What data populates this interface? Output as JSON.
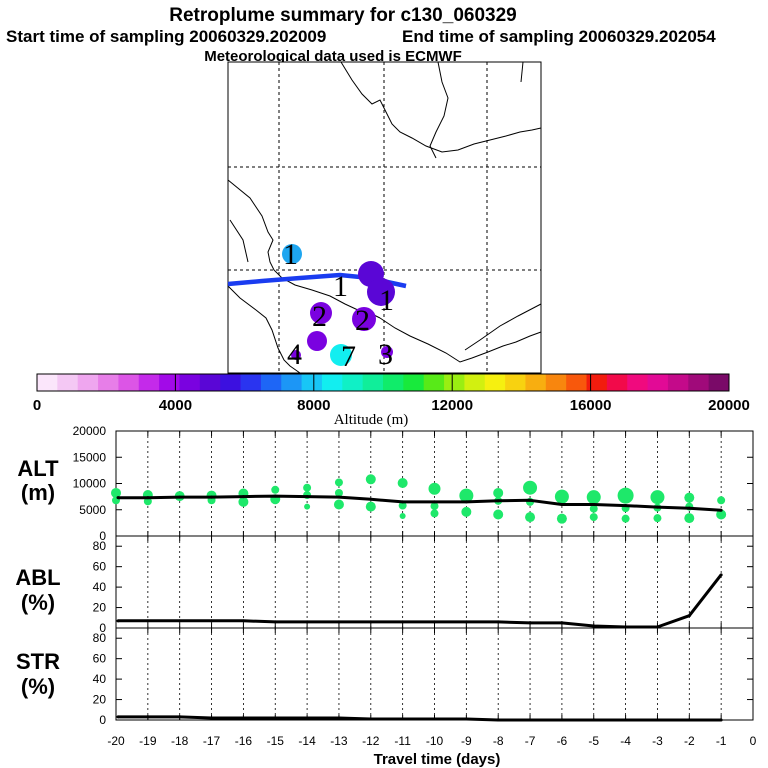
{
  "header": {
    "title": "Retroplume summary for c130_060329",
    "start": "Start time of sampling 20060329.202009",
    "end": "End time of sampling 20060329.202054",
    "met": "Meteorological data used is ECMWF"
  },
  "colors": {
    "track": "#1a3cf0",
    "alt_dot": "#1ee86a",
    "line": "#000000",
    "colorbar": [
      "#fbe6fb",
      "#f4c8f4",
      "#efa6ef",
      "#e77ee8",
      "#dc55e6",
      "#c42aea",
      "#a20ae8",
      "#7a02e0",
      "#5a06d6",
      "#3c10e0",
      "#2a34f0",
      "#1e66f6",
      "#1c96f6",
      "#18c6f6",
      "#12eef0",
      "#10f0c6",
      "#10ee9a",
      "#10ec6a",
      "#18ea3c",
      "#58ea18",
      "#9aee12",
      "#d2f010",
      "#f6f010",
      "#f8d210",
      "#f8ae10",
      "#f8860e",
      "#f8580c",
      "#f21c0e",
      "#f20a4a",
      "#f00a7e",
      "#e20a96",
      "#c40a8a",
      "#a00a7a",
      "#7a0a68"
    ]
  },
  "map": {
    "points": [
      {
        "label": "1",
        "color": "#1ea6f0"
      },
      {
        "label": "1",
        "color": "#5a06d6"
      },
      {
        "label": "1",
        "color": "#5a06d6"
      },
      {
        "label": "2",
        "color": "#7a02e0"
      },
      {
        "label": "2",
        "color": "#7a02e0"
      },
      {
        "label": "4",
        "color": "#7a02e0"
      },
      {
        "label": "7",
        "color": "#12eef0"
      },
      {
        "label": "3",
        "color": "#7a02e0"
      },
      {
        "label": "",
        "color": "#7a02e0"
      }
    ]
  },
  "colorbar": {
    "ticks": [
      "0",
      "4000",
      "8000",
      "12000",
      "16000",
      "20000"
    ],
    "label": "Altitude (m)"
  },
  "chart_data": [
    {
      "type": "line",
      "name": "ALT",
      "ylabel_lines": [
        "ALT",
        "(m)"
      ],
      "x": [
        -20,
        -19,
        -18,
        -17,
        -16,
        -15,
        -14,
        -13,
        -12,
        -11,
        -10,
        -9,
        -8,
        -7,
        -6,
        -5,
        -4,
        -3,
        -2,
        -1
      ],
      "values": [
        7300,
        7300,
        7400,
        7400,
        7500,
        7600,
        7500,
        7400,
        7000,
        6500,
        6500,
        6500,
        6700,
        6800,
        6000,
        6000,
        5800,
        5500,
        5300,
        4900
      ],
      "ylim": [
        0,
        20000
      ],
      "yticks": [
        "0",
        "5000",
        "10000",
        "15000",
        "20000"
      ],
      "scatter": [
        [
          -20,
          8200,
          5
        ],
        [
          -20,
          6800,
          4
        ],
        [
          -19,
          7800,
          5
        ],
        [
          -19,
          6600,
          4
        ],
        [
          -18,
          7600,
          5
        ],
        [
          -17,
          7700,
          5
        ],
        [
          -17,
          6800,
          4
        ],
        [
          -16,
          8100,
          5
        ],
        [
          -16,
          6500,
          5
        ],
        [
          -15,
          8800,
          4
        ],
        [
          -15,
          7000,
          5
        ],
        [
          -14,
          9200,
          4
        ],
        [
          -14,
          7800,
          4
        ],
        [
          -14,
          5600,
          3
        ],
        [
          -13,
          10200,
          4
        ],
        [
          -13,
          8200,
          4
        ],
        [
          -13,
          6000,
          5
        ],
        [
          -12,
          10800,
          5
        ],
        [
          -12,
          5600,
          5
        ],
        [
          -11,
          10100,
          5
        ],
        [
          -11,
          5800,
          4
        ],
        [
          -11,
          3800,
          3
        ],
        [
          -10,
          9000,
          6
        ],
        [
          -10,
          5700,
          4
        ],
        [
          -10,
          4300,
          4
        ],
        [
          -9,
          7700,
          7
        ],
        [
          -9,
          4600,
          5
        ],
        [
          -8,
          8200,
          5
        ],
        [
          -8,
          6700,
          4
        ],
        [
          -8,
          4100,
          5
        ],
        [
          -7,
          9200,
          7
        ],
        [
          -7,
          6500,
          4
        ],
        [
          -7,
          3600,
          5
        ],
        [
          -6,
          7500,
          7
        ],
        [
          -6,
          3300,
          5
        ],
        [
          -5,
          7400,
          7
        ],
        [
          -5,
          5200,
          4
        ],
        [
          -5,
          3600,
          4
        ],
        [
          -4,
          7700,
          8
        ],
        [
          -4,
          5300,
          4
        ],
        [
          -4,
          3300,
          4
        ],
        [
          -3,
          7400,
          7
        ],
        [
          -3,
          5400,
          4
        ],
        [
          -3,
          3400,
          4
        ],
        [
          -2,
          7300,
          5
        ],
        [
          -2,
          5600,
          4
        ],
        [
          -2,
          3400,
          5
        ],
        [
          -1,
          6800,
          4
        ],
        [
          -1,
          4100,
          5
        ]
      ]
    },
    {
      "type": "line",
      "name": "ABL",
      "ylabel_lines": [
        "ABL",
        "(%)"
      ],
      "x": [
        -20,
        -19,
        -18,
        -17,
        -16,
        -15,
        -14,
        -13,
        -12,
        -11,
        -10,
        -9,
        -8,
        -7,
        -6,
        -5,
        -4,
        -3,
        -2,
        -1
      ],
      "values": [
        7,
        7,
        7,
        7,
        7,
        6,
        6,
        6,
        6,
        6,
        6,
        6,
        6,
        5,
        5,
        2,
        1,
        1,
        12,
        52
      ],
      "ylim": [
        0,
        90
      ],
      "yticks": [
        "0",
        "20",
        "40",
        "60",
        "80"
      ]
    },
    {
      "type": "line",
      "name": "STR",
      "ylabel_lines": [
        "STR",
        "(%)"
      ],
      "x": [
        -20,
        -19,
        -18,
        -17,
        -16,
        -15,
        -14,
        -13,
        -12,
        -11,
        -10,
        -9,
        -8,
        -7,
        -6,
        -5,
        -4,
        -3,
        -2,
        -1
      ],
      "values": [
        3,
        3,
        3,
        2,
        2,
        2,
        2,
        2,
        1,
        1,
        1,
        1,
        0,
        0,
        0,
        0,
        0,
        0,
        0,
        0
      ],
      "ylim": [
        0,
        90
      ],
      "yticks": [
        "0",
        "20",
        "40",
        "60",
        "80"
      ]
    }
  ],
  "xaxis": {
    "ticks": [
      "-20",
      "-19",
      "-18",
      "-17",
      "-16",
      "-15",
      "-14",
      "-13",
      "-12",
      "-11",
      "-10",
      "-9",
      "-8",
      "-7",
      "-6",
      "-5",
      "-4",
      "-3",
      "-2",
      "-1",
      "0"
    ],
    "label": "Travel time (days)"
  }
}
